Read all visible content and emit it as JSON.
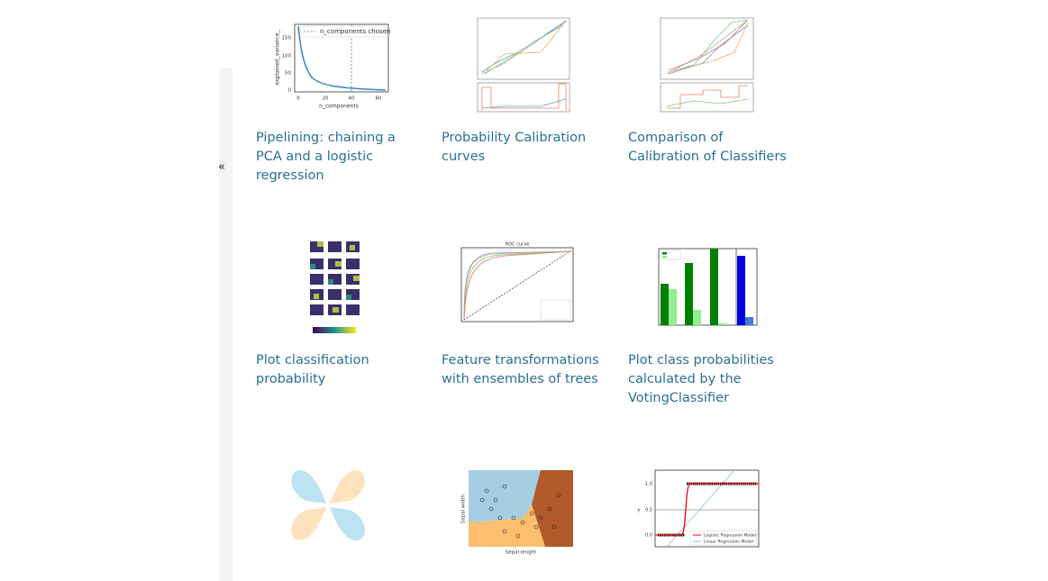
{
  "sidebar": {
    "toggle": "«"
  },
  "gallery": {
    "items": [
      {
        "title": "Pipelining: chaining a PCA and a logistic regression",
        "thumbnail": {
          "legend": "n_components chosen",
          "ylabel": "explained_variance_",
          "xlabel": "n_components",
          "yticks": [
            "150",
            "100",
            "50",
            "0"
          ],
          "xticks": [
            "0",
            "20",
            "40",
            "60"
          ]
        }
      },
      {
        "title": "Probability Calibration curves"
      },
      {
        "title": "Comparison of Calibration of Classifiers"
      },
      {
        "title": "Plot classification probability"
      },
      {
        "title": "Feature transformations with ensembles of trees",
        "thumbnail": {
          "title": "ROC curve"
        }
      },
      {
        "title": "Plot class probabilities calculated by the VotingClassifier"
      },
      {
        "title": ""
      },
      {
        "title": "",
        "thumbnail": {
          "xlabel": "Sepal length",
          "ylabel": "Sepal width"
        }
      },
      {
        "title": "",
        "thumbnail": {
          "legend": [
            "Logistic Regression Model",
            "Linear Regression Model"
          ],
          "yticks": [
            "1.0",
            "0.5",
            "0.0"
          ],
          "ylabel": "y"
        }
      }
    ]
  }
}
